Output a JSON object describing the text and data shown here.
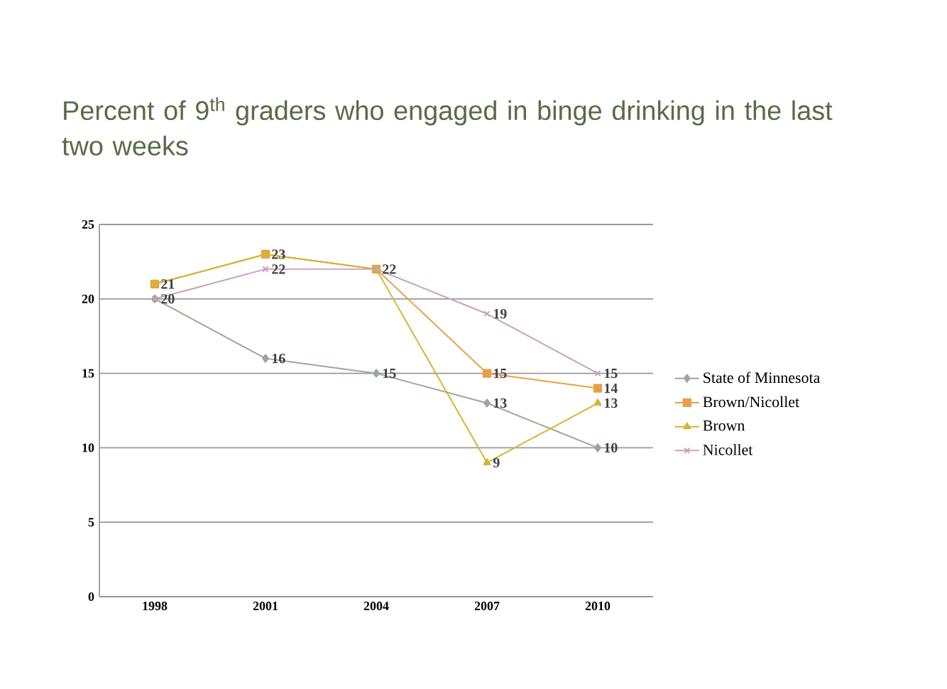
{
  "chart_data": {
    "type": "line",
    "title": "Percent of 9$^{th}$ graders who engaged in binge drinking in the last two weeks",
    "categories": [
      "1998",
      "2001",
      "2004",
      "2007",
      "2010"
    ],
    "series": [
      {
        "name": "State of Minnesota",
        "color": "#9aa898",
        "marker": "diamond",
        "values": [
          20,
          16,
          15,
          13,
          10
        ],
        "value_labels": [
          null,
          "16",
          "15",
          "13",
          "10"
        ]
      },
      {
        "name": "Brown/Nicollet",
        "color": "#e8a048",
        "marker": "square",
        "values": [
          21,
          23,
          22,
          15,
          14
        ],
        "value_labels": [
          "21",
          "23",
          "22",
          "15",
          "14"
        ]
      },
      {
        "name": "Brown",
        "color": "#d6b432",
        "marker": "triangle",
        "values": [
          21,
          23,
          22,
          9,
          13
        ],
        "value_labels": [
          null,
          null,
          null,
          "9",
          "13"
        ]
      },
      {
        "name": "Nicollet",
        "color": "#c9a2bc",
        "marker": "cross",
        "values": [
          20,
          22,
          22,
          19,
          15
        ],
        "value_labels": [
          "20",
          "22",
          null,
          "19",
          "15"
        ]
      }
    ],
    "ylim": [
      0,
      25
    ],
    "yticks": [
      0,
      5,
      10,
      15,
      20,
      25
    ],
    "grid": "y",
    "legend": "right",
    "line_style": "solid"
  }
}
